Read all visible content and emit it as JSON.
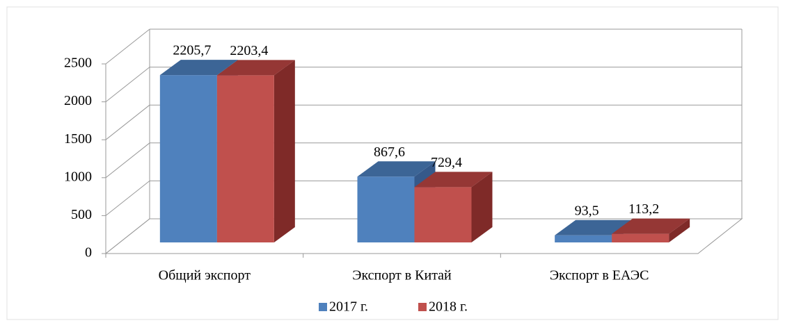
{
  "chart_data": {
    "type": "bar3d",
    "categories": [
      "Общий экспорт",
      "Экспорт  в  Китай",
      "Экспорт  в  ЕАЭС"
    ],
    "series": [
      {
        "name": "2017 г.",
        "color": "#4f81bd",
        "values": [
          2205.7,
          867.6,
          93.5
        ],
        "value_labels": [
          "2205,7",
          "867,6",
          "93,5"
        ]
      },
      {
        "name": "2018 г.",
        "color": "#c0504d",
        "values": [
          2203.4,
          729.4,
          113.2
        ],
        "value_labels": [
          "2203,4",
          "729,4",
          "113,2"
        ]
      }
    ],
    "ylim": [
      0,
      2500
    ],
    "yticks": [
      0,
      500,
      1000,
      1500,
      2000,
      2500
    ],
    "grid": true,
    "legend": "bottom"
  }
}
